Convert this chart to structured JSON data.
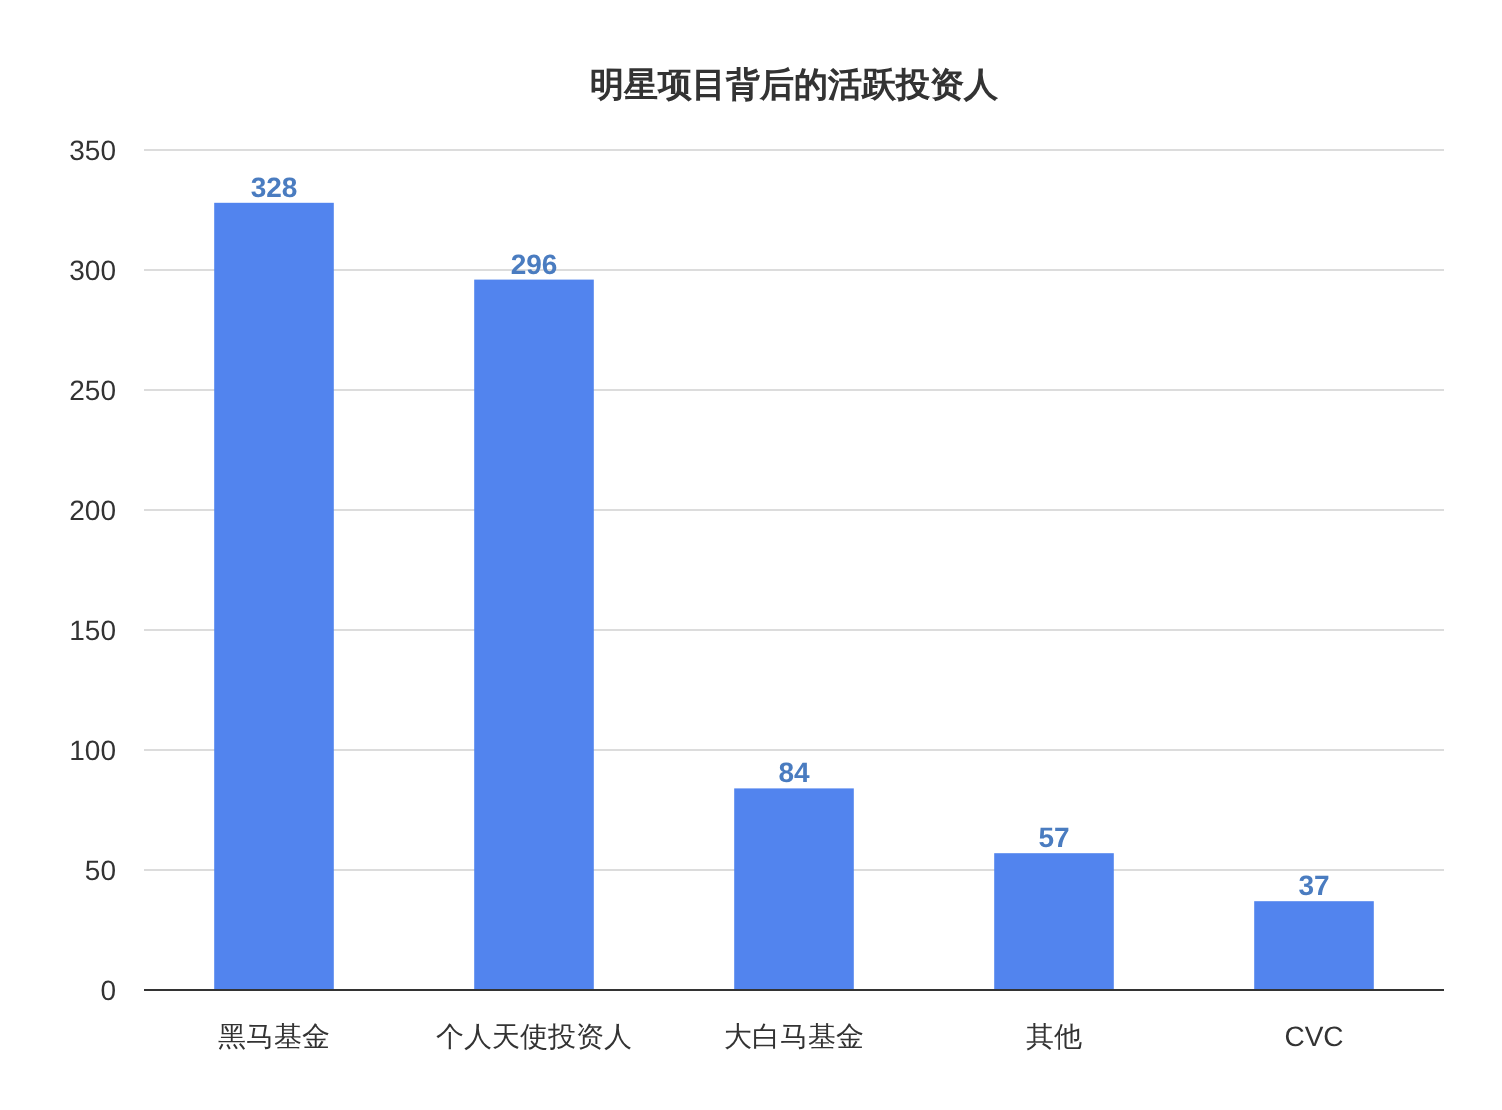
{
  "chart_data": {
    "type": "bar",
    "title": "明星项目背后的活跃投资人",
    "categories": [
      "黑马基金",
      "个人天使投资人",
      "大白马基金",
      "其他",
      "CVC"
    ],
    "values": [
      328,
      296,
      84,
      57,
      37
    ],
    "color": "#5284ee",
    "ylim": [
      0,
      350
    ],
    "yticks": [
      0,
      50,
      100,
      150,
      200,
      250,
      300,
      350
    ],
    "grid": "y",
    "data_labels": true
  }
}
